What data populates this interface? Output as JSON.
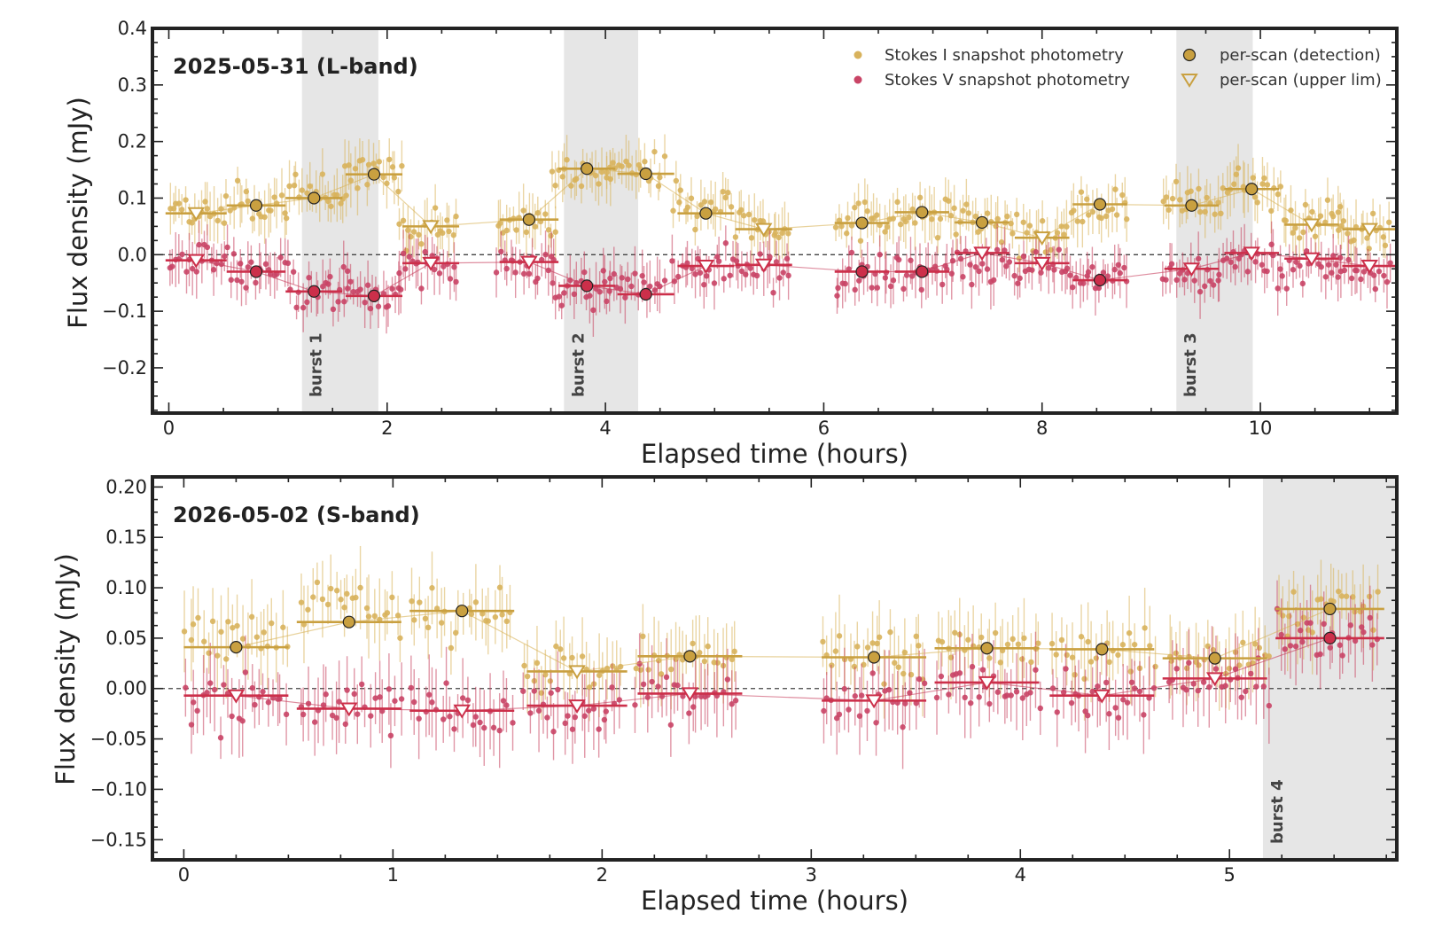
{
  "colors": {
    "stokes_i": "#d9b45a",
    "stokes_i_point": "#d8b25c",
    "stokes_i_marker": "#c9a040",
    "stokes_v": "#c8415f",
    "stokes_v_point": "#c94466",
    "stokes_v_marker": "#cc2f4a",
    "burst_shade": "#e6e6e6",
    "zero_line": "#444444",
    "frame": "#222222"
  },
  "legend": {
    "stokes_i": "Stokes I  snapshot photometry",
    "stokes_v": "Stokes V  snapshot photometry",
    "detection": "per-scan (detection)",
    "upper_lim": "per-scan (upper lim)"
  },
  "chart_data": [
    {
      "type": "scatter",
      "title": "2025-05-31 (L-band)",
      "xlabel": "Elapsed time (hours)",
      "ylabel": "Flux density (mJy)",
      "xlim": [
        -0.15,
        11.25
      ],
      "ylim": [
        -0.28,
        0.4
      ],
      "xticks": [
        0,
        2,
        4,
        6,
        8,
        10
      ],
      "yticks": [
        -0.2,
        -0.1,
        0.0,
        0.1,
        0.2,
        0.3,
        0.4
      ],
      "ytick_labels": [
        "−0.2",
        "−0.1",
        "0.0",
        "0.1",
        "0.2",
        "0.3",
        "0.4"
      ],
      "grid": false,
      "legend_position": "top-right",
      "bursts": [
        {
          "label": "burst 1",
          "x0": 1.22,
          "x1": 1.92
        },
        {
          "label": "burst 2",
          "x0": 3.62,
          "x1": 4.3
        },
        {
          "label": "burst 3",
          "x0": 9.23,
          "x1": 9.93
        }
      ],
      "snapshot_blocks": [
        {
          "start": 0.0,
          "end": 0.55,
          "i": 0.07,
          "v": -0.01
        },
        {
          "start": 0.55,
          "end": 1.1,
          "i": 0.09,
          "v": -0.03
        },
        {
          "start": 1.1,
          "end": 1.65,
          "i": 0.11,
          "v": -0.06
        },
        {
          "start": 1.6,
          "end": 2.15,
          "i": 0.15,
          "v": -0.07
        },
        {
          "start": 2.1,
          "end": 2.65,
          "i": 0.05,
          "v": -0.02
        },
        {
          "start": 3.0,
          "end": 3.55,
          "i": 0.06,
          "v": -0.02
        },
        {
          "start": 3.5,
          "end": 4.05,
          "i": 0.14,
          "v": -0.06
        },
        {
          "start": 4.0,
          "end": 4.55,
          "i": 0.15,
          "v": -0.06
        },
        {
          "start": 4.6,
          "end": 5.15,
          "i": 0.08,
          "v": -0.03
        },
        {
          "start": 5.15,
          "end": 5.7,
          "i": 0.05,
          "v": -0.03
        },
        {
          "start": 6.1,
          "end": 6.6,
          "i": 0.06,
          "v": -0.04
        },
        {
          "start": 6.6,
          "end": 7.15,
          "i": 0.07,
          "v": -0.03
        },
        {
          "start": 7.15,
          "end": 7.7,
          "i": 0.06,
          "v": -0.01
        },
        {
          "start": 7.7,
          "end": 8.25,
          "i": 0.03,
          "v": -0.02
        },
        {
          "start": 8.25,
          "end": 8.8,
          "i": 0.09,
          "v": -0.04
        },
        {
          "start": 9.1,
          "end": 9.65,
          "i": 0.09,
          "v": -0.04
        },
        {
          "start": 9.65,
          "end": 10.2,
          "i": 0.12,
          "v": -0.01
        },
        {
          "start": 10.2,
          "end": 10.75,
          "i": 0.06,
          "v": -0.02
        },
        {
          "start": 10.7,
          "end": 11.2,
          "i": 0.05,
          "v": -0.03
        }
      ],
      "per_scan": {
        "stokes_i": [
          {
            "x": 0.25,
            "y": 0.073,
            "dx": 0.28,
            "detected": false
          },
          {
            "x": 0.8,
            "y": 0.087,
            "dx": 0.27,
            "detected": true
          },
          {
            "x": 1.33,
            "y": 0.1,
            "dx": 0.26,
            "detected": true
          },
          {
            "x": 1.88,
            "y": 0.142,
            "dx": 0.26,
            "detected": true
          },
          {
            "x": 2.4,
            "y": 0.05,
            "dx": 0.26,
            "detected": false
          },
          {
            "x": 3.3,
            "y": 0.062,
            "dx": 0.27,
            "detected": true
          },
          {
            "x": 3.83,
            "y": 0.152,
            "dx": 0.26,
            "detected": true
          },
          {
            "x": 4.37,
            "y": 0.143,
            "dx": 0.26,
            "detected": true
          },
          {
            "x": 4.92,
            "y": 0.073,
            "dx": 0.26,
            "detected": true
          },
          {
            "x": 5.45,
            "y": 0.045,
            "dx": 0.26,
            "detected": false
          },
          {
            "x": 6.35,
            "y": 0.056,
            "dx": 0.25,
            "detected": true
          },
          {
            "x": 6.9,
            "y": 0.075,
            "dx": 0.25,
            "detected": true
          },
          {
            "x": 7.45,
            "y": 0.057,
            "dx": 0.25,
            "detected": true
          },
          {
            "x": 8.0,
            "y": 0.03,
            "dx": 0.25,
            "detected": false
          },
          {
            "x": 8.53,
            "y": 0.089,
            "dx": 0.25,
            "detected": true
          },
          {
            "x": 9.37,
            "y": 0.087,
            "dx": 0.25,
            "detected": true
          },
          {
            "x": 9.92,
            "y": 0.116,
            "dx": 0.25,
            "detected": true
          },
          {
            "x": 10.47,
            "y": 0.053,
            "dx": 0.25,
            "detected": false
          },
          {
            "x": 11.0,
            "y": 0.045,
            "dx": 0.25,
            "detected": false
          }
        ],
        "stokes_v": [
          {
            "x": 0.25,
            "y": -0.01,
            "dx": 0.28,
            "detected": false
          },
          {
            "x": 0.8,
            "y": -0.03,
            "dx": 0.27,
            "detected": true
          },
          {
            "x": 1.33,
            "y": -0.065,
            "dx": 0.26,
            "detected": true
          },
          {
            "x": 1.88,
            "y": -0.073,
            "dx": 0.26,
            "detected": true
          },
          {
            "x": 2.4,
            "y": -0.015,
            "dx": 0.26,
            "detected": false
          },
          {
            "x": 3.3,
            "y": -0.013,
            "dx": 0.27,
            "detected": false
          },
          {
            "x": 3.83,
            "y": -0.055,
            "dx": 0.26,
            "detected": true
          },
          {
            "x": 4.37,
            "y": -0.07,
            "dx": 0.26,
            "detected": true
          },
          {
            "x": 4.92,
            "y": -0.02,
            "dx": 0.26,
            "detected": false
          },
          {
            "x": 5.45,
            "y": -0.018,
            "dx": 0.26,
            "detected": false
          },
          {
            "x": 6.35,
            "y": -0.03,
            "dx": 0.25,
            "detected": true
          },
          {
            "x": 6.9,
            "y": -0.03,
            "dx": 0.25,
            "detected": true
          },
          {
            "x": 7.45,
            "y": 0.003,
            "dx": 0.25,
            "detected": false
          },
          {
            "x": 8.0,
            "y": -0.015,
            "dx": 0.25,
            "detected": false
          },
          {
            "x": 8.53,
            "y": -0.045,
            "dx": 0.25,
            "detected": true
          },
          {
            "x": 9.37,
            "y": -0.025,
            "dx": 0.25,
            "detected": false
          },
          {
            "x": 9.92,
            "y": 0.003,
            "dx": 0.25,
            "detected": false
          },
          {
            "x": 10.47,
            "y": -0.007,
            "dx": 0.25,
            "detected": false
          },
          {
            "x": 11.0,
            "y": -0.02,
            "dx": 0.25,
            "detected": false
          }
        ]
      }
    },
    {
      "type": "scatter",
      "title": "2026-05-02 (S-band)",
      "xlabel": "Elapsed time (hours)",
      "ylabel": "Flux density (mJy)",
      "xlim": [
        -0.15,
        5.8
      ],
      "ylim": [
        -0.17,
        0.21
      ],
      "xticks": [
        0,
        1,
        2,
        3,
        4,
        5
      ],
      "yticks": [
        -0.15,
        -0.1,
        -0.05,
        0.0,
        0.05,
        0.1,
        0.15,
        0.2
      ],
      "ytick_labels": [
        "−0.15",
        "−0.10",
        "−0.05",
        "0.00",
        "0.05",
        "0.10",
        "0.15",
        "0.20"
      ],
      "grid": false,
      "bursts": [
        {
          "label": "burst 4",
          "x0": 5.16,
          "x1": 5.8
        }
      ],
      "snapshot_blocks": [
        {
          "start": 0.0,
          "end": 0.5,
          "i": 0.05,
          "v": -0.01
        },
        {
          "start": 0.55,
          "end": 1.05,
          "i": 0.08,
          "v": -0.02
        },
        {
          "start": 1.08,
          "end": 1.58,
          "i": 0.08,
          "v": -0.02
        },
        {
          "start": 1.62,
          "end": 2.1,
          "i": 0.02,
          "v": -0.02
        },
        {
          "start": 2.15,
          "end": 2.65,
          "i": 0.03,
          "v": -0.01
        },
        {
          "start": 3.05,
          "end": 3.55,
          "i": 0.03,
          "v": -0.01
        },
        {
          "start": 3.6,
          "end": 4.1,
          "i": 0.04,
          "v": 0.0
        },
        {
          "start": 4.15,
          "end": 4.65,
          "i": 0.04,
          "v": -0.01
        },
        {
          "start": 4.7,
          "end": 5.2,
          "i": 0.03,
          "v": 0.01
        },
        {
          "start": 5.22,
          "end": 5.72,
          "i": 0.08,
          "v": 0.05
        }
      ],
      "per_scan": {
        "stokes_i": [
          {
            "x": 0.25,
            "y": 0.041,
            "dx": 0.25,
            "detected": true
          },
          {
            "x": 0.79,
            "y": 0.066,
            "dx": 0.25,
            "detected": true
          },
          {
            "x": 1.33,
            "y": 0.077,
            "dx": 0.25,
            "detected": true
          },
          {
            "x": 1.88,
            "y": 0.017,
            "dx": 0.24,
            "detected": false
          },
          {
            "x": 2.42,
            "y": 0.032,
            "dx": 0.25,
            "detected": true
          },
          {
            "x": 3.3,
            "y": 0.031,
            "dx": 0.25,
            "detected": true
          },
          {
            "x": 3.84,
            "y": 0.04,
            "dx": 0.25,
            "detected": true
          },
          {
            "x": 4.39,
            "y": 0.039,
            "dx": 0.25,
            "detected": true
          },
          {
            "x": 4.93,
            "y": 0.03,
            "dx": 0.25,
            "detected": true
          },
          {
            "x": 5.48,
            "y": 0.079,
            "dx": 0.26,
            "detected": true
          }
        ],
        "stokes_v": [
          {
            "x": 0.25,
            "y": -0.007,
            "dx": 0.25,
            "detected": false
          },
          {
            "x": 0.79,
            "y": -0.02,
            "dx": 0.25,
            "detected": false
          },
          {
            "x": 1.33,
            "y": -0.022,
            "dx": 0.25,
            "detected": false
          },
          {
            "x": 1.88,
            "y": -0.017,
            "dx": 0.24,
            "detected": false
          },
          {
            "x": 2.42,
            "y": -0.005,
            "dx": 0.25,
            "detected": false
          },
          {
            "x": 3.3,
            "y": -0.012,
            "dx": 0.25,
            "detected": false
          },
          {
            "x": 3.84,
            "y": 0.006,
            "dx": 0.25,
            "detected": false
          },
          {
            "x": 4.39,
            "y": -0.007,
            "dx": 0.25,
            "detected": false
          },
          {
            "x": 4.93,
            "y": 0.01,
            "dx": 0.25,
            "detected": false
          },
          {
            "x": 5.48,
            "y": 0.05,
            "dx": 0.26,
            "detected": true
          }
        ]
      }
    }
  ]
}
